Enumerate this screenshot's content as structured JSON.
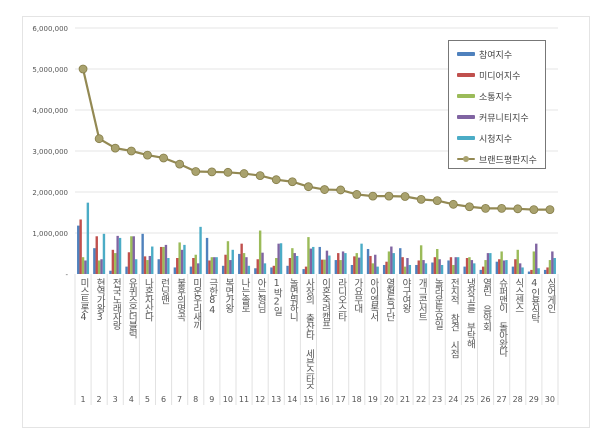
{
  "chart_data": {
    "type": "bar",
    "ylim": [
      0,
      6000000
    ],
    "yticks": [
      "-",
      "1,000,000",
      "2,000,000",
      "3,000,000",
      "4,000,000",
      "5,000,000",
      "6,000,000"
    ],
    "grid": true,
    "legend_placement": "top-right",
    "categories": [
      "미스트롯4",
      "현역가왕3",
      "전국노래자랑",
      "유퀴즈온더블럭",
      "나혼자산다",
      "런닝맨",
      "불후의명곡",
      "미운우리새끼",
      "극한84",
      "복면가왕",
      "나는솔로",
      "아는형님",
      "1박2일",
      "놀면뭐하니",
      "사장의 출산타 세븐스타즈",
      "이혼숙려캠프",
      "라디오스타",
      "가요무대",
      "아이엠복서",
      "열혈농구단",
      "야구여왕",
      "개그콘서트",
      "놀라운토요일",
      "전지적 참견 시점",
      "냉장고를 부탁해",
      "열린 음악회",
      "슈퍼맨이 돌아왔다",
      "식스센스",
      "4인용식탁",
      "싱어게인"
    ],
    "rank_labels": [
      "1",
      "2",
      "3",
      "4",
      "5",
      "6",
      "7",
      "8",
      "9",
      "10",
      "11",
      "12",
      "13",
      "14",
      "15",
      "16",
      "17",
      "18",
      "19",
      "20",
      "21",
      "22",
      "23",
      "24",
      "25",
      "26",
      "27",
      "28",
      "29",
      "30"
    ],
    "series": [
      {
        "name": "참여지수",
        "type": "bar",
        "color": "#4f81bd",
        "values": [
          1180000,
          630000,
          80000,
          180000,
          980000,
          360000,
          160000,
          180000,
          880000,
          200000,
          490000,
          140000,
          160000,
          200000,
          120000,
          660000,
          340000,
          220000,
          610000,
          220000,
          630000,
          220000,
          280000,
          330000,
          180000,
          100000,
          300000,
          180000,
          60000,
          100000
        ]
      },
      {
        "name": "미디어지수",
        "type": "bar",
        "color": "#c0504d",
        "values": [
          1330000,
          920000,
          590000,
          530000,
          430000,
          660000,
          390000,
          390000,
          330000,
          470000,
          740000,
          360000,
          200000,
          390000,
          180000,
          350000,
          510000,
          430000,
          440000,
          300000,
          410000,
          330000,
          410000,
          410000,
          390000,
          180000,
          360000,
          360000,
          100000,
          160000
        ]
      },
      {
        "name": "소통지수",
        "type": "bar",
        "color": "#9bbb59",
        "values": [
          410000,
          330000,
          510000,
          920000,
          340000,
          660000,
          770000,
          470000,
          410000,
          800000,
          510000,
          1060000,
          390000,
          630000,
          900000,
          350000,
          340000,
          510000,
          260000,
          550000,
          180000,
          700000,
          610000,
          220000,
          410000,
          340000,
          550000,
          590000,
          550000,
          340000
        ]
      },
      {
        "name": "커뮤니티지수",
        "type": "bar",
        "color": "#8064a2",
        "values": [
          330000,
          360000,
          930000,
          920000,
          440000,
          710000,
          590000,
          260000,
          410000,
          340000,
          410000,
          520000,
          740000,
          510000,
          620000,
          570000,
          550000,
          400000,
          470000,
          670000,
          390000,
          340000,
          360000,
          410000,
          340000,
          510000,
          330000,
          260000,
          740000,
          550000
        ]
      },
      {
        "name": "시청지수",
        "type": "bar",
        "color": "#4bacc6",
        "values": [
          1740000,
          980000,
          880000,
          360000,
          670000,
          390000,
          710000,
          1150000,
          410000,
          590000,
          200000,
          260000,
          750000,
          440000,
          660000,
          450000,
          510000,
          740000,
          180000,
          510000,
          220000,
          260000,
          220000,
          410000,
          260000,
          510000,
          340000,
          160000,
          140000,
          390000
        ]
      },
      {
        "name": "브랜드평판지수",
        "type": "line",
        "color": "#938953",
        "values": [
          5000000,
          3300000,
          3070000,
          3000000,
          2900000,
          2830000,
          2680000,
          2500000,
          2490000,
          2480000,
          2450000,
          2400000,
          2300000,
          2250000,
          2130000,
          2060000,
          2050000,
          1940000,
          1900000,
          1900000,
          1890000,
          1820000,
          1790000,
          1700000,
          1640000,
          1600000,
          1600000,
          1590000,
          1570000,
          1570000
        ]
      }
    ]
  }
}
